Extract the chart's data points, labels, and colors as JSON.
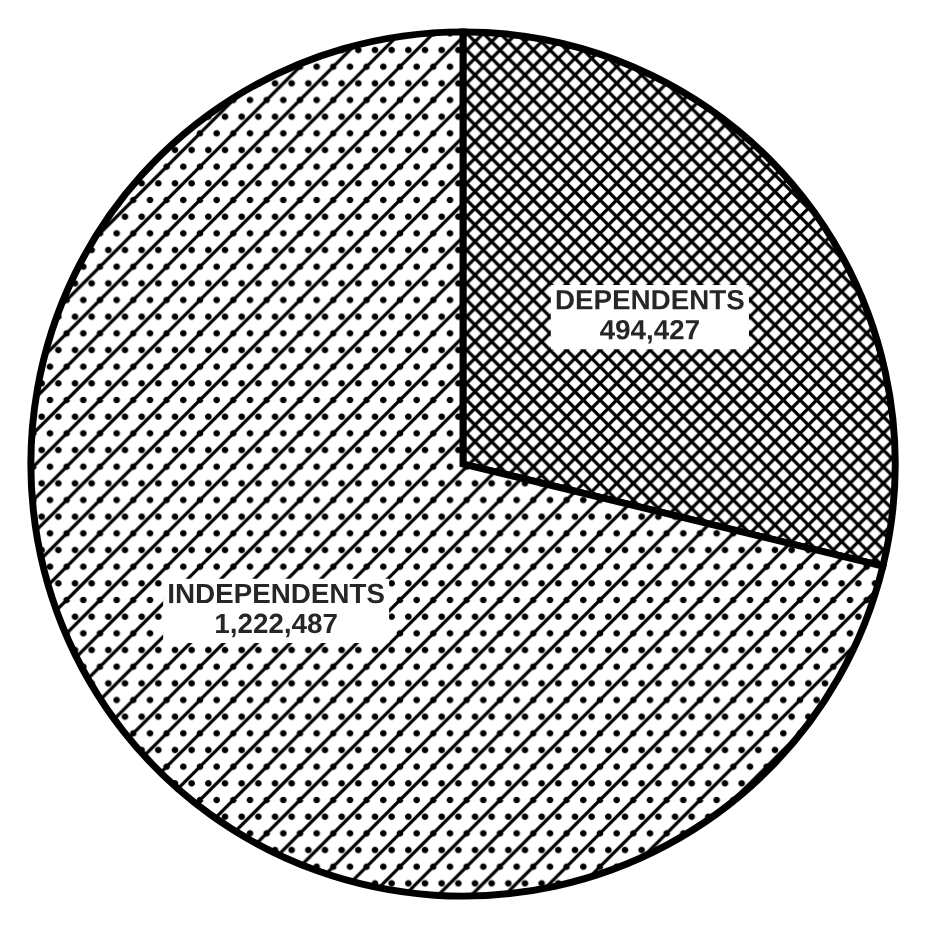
{
  "chart_data": {
    "type": "pie",
    "categories": [
      "DEPENDENTS",
      "INDEPENDENTS"
    ],
    "values": [
      494427,
      1222487
    ],
    "value_labels": [
      "494,427",
      "1,222,487"
    ],
    "colors": [
      "#000000",
      "#000000"
    ]
  }
}
